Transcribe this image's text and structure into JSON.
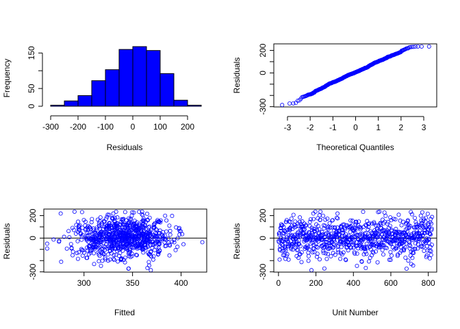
{
  "chart_data": [
    {
      "type": "bar",
      "subtype": "histogram",
      "xlabel": "Residuals",
      "ylabel": "Frequency",
      "bar_color": "#0000FF",
      "bins": [
        {
          "from": -300,
          "to": -250,
          "count": 3
        },
        {
          "from": -250,
          "to": -200,
          "count": 15
        },
        {
          "from": -200,
          "to": -150,
          "count": 30
        },
        {
          "from": -150,
          "to": -100,
          "count": 72
        },
        {
          "from": -100,
          "to": -50,
          "count": 103
        },
        {
          "from": -50,
          "to": 0,
          "count": 160
        },
        {
          "from": 0,
          "to": 50,
          "count": 168
        },
        {
          "from": 50,
          "to": 100,
          "count": 157
        },
        {
          "from": 100,
          "to": 150,
          "count": 92
        },
        {
          "from": 150,
          "to": 200,
          "count": 17
        },
        {
          "from": 200,
          "to": 250,
          "count": 3
        }
      ],
      "xticks": [
        -300,
        -200,
        -100,
        0,
        100,
        200
      ],
      "yticks": [
        0,
        50,
        150
      ],
      "xlim": [
        -300,
        250
      ],
      "ylim": [
        0,
        168
      ]
    },
    {
      "type": "scatter",
      "subtype": "qq",
      "xlabel": "Theoretical Quantiles",
      "ylabel": "Residuals",
      "point_color": "#0000FF",
      "n": 820,
      "xticks": [
        -3,
        -2,
        -1,
        0,
        1,
        2,
        3
      ],
      "yticks": [
        -300,
        0,
        200
      ],
      "xlim": [
        -3.3,
        3.3
      ],
      "ylim": [
        -290,
        240
      ]
    },
    {
      "type": "scatter",
      "xlabel": "Fitted",
      "ylabel": "Residuals",
      "point_color": "#0000FF",
      "reference_line_y": 0,
      "n": 820,
      "xticks": [
        300,
        350,
        400
      ],
      "yticks": [
        -300,
        0,
        200
      ],
      "xlim": [
        260,
        425
      ],
      "ylim": [
        -290,
        240
      ]
    },
    {
      "type": "scatter",
      "xlabel": "Unit Number",
      "ylabel": "Residuals",
      "point_color": "#0000FF",
      "reference_line_y": 0,
      "n": 820,
      "xticks": [
        0,
        200,
        400,
        600,
        800
      ],
      "yticks": [
        -300,
        0,
        200
      ],
      "xlim": [
        0,
        820
      ],
      "ylim": [
        -290,
        240
      ]
    }
  ]
}
